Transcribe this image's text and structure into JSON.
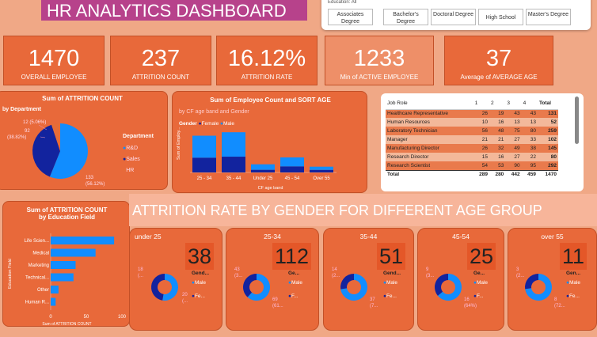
{
  "header": {
    "title": "HR ANALYTICS DASHBOARD"
  },
  "slicer": {
    "label": "Education: All",
    "options": [
      "Associates Degree",
      "Bachelor's Degree",
      "Doctoral Degree",
      "High School",
      "Master's Degree"
    ]
  },
  "kpis": [
    {
      "value": "1470",
      "label": "OVERALL EMPLOYEE"
    },
    {
      "value": "237",
      "label": "ATTRITION COUNT"
    },
    {
      "value": "16.12%",
      "label": "ATTRITION RATE"
    },
    {
      "value": "1233",
      "label": "Min of ACTIVE EMPLOYEE"
    },
    {
      "value": "37",
      "label": "Average of AVERAGE AGE"
    }
  ],
  "dept_panel": {
    "title": "Sum of ATTRITION COUNT",
    "subtitle": "by Department",
    "legend_title": "Department",
    "legend": [
      "R&D",
      "Sales",
      "HR"
    ],
    "labels": {
      "hr": "12 (5.06%)",
      "sales_a": "92",
      "sales_b": "(38.82%)",
      "rd_a": "133",
      "rd_b": "(56.12%)"
    },
    "chart_data": {
      "type": "pie",
      "categories": [
        "R&D",
        "Sales",
        "HR"
      ],
      "values": [
        133,
        92,
        12
      ],
      "colors": [
        "#118dff",
        "#12239e",
        "#e66c37"
      ]
    }
  },
  "gender_panel": {
    "title": "Sum of Employee Count and SORT AGE",
    "subtitle": "by CF age band and Gender",
    "legend_title": "Gender",
    "legend": [
      "Female",
      "Male"
    ],
    "ylabel": "Sum of Employ...",
    "xlabel": "CF age band",
    "chart_data": {
      "type": "bar",
      "categories": [
        "25 - 34",
        "35 - 44",
        "Under 25",
        "45 - 54",
        "Over 55"
      ],
      "series": [
        {
          "name": "Female",
          "values": [
            222,
            238,
            40,
            91,
            39
          ]
        },
        {
          "name": "Male",
          "values": [
            332,
            368,
            83,
            136,
            48
          ]
        }
      ],
      "ylim": [
        0,
        620
      ]
    }
  },
  "jobrole": {
    "headers": [
      "Job Role",
      "1",
      "2",
      "3",
      "4",
      "Total"
    ],
    "rows": [
      [
        "Healthcare Representative",
        "26",
        "19",
        "43",
        "43",
        "131"
      ],
      [
        "Human Resources",
        "10",
        "16",
        "13",
        "13",
        "52"
      ],
      [
        "Laboratory Technician",
        "56",
        "48",
        "75",
        "80",
        "259"
      ],
      [
        "Manager",
        "21",
        "21",
        "27",
        "33",
        "102"
      ],
      [
        "Manufacturing Director",
        "26",
        "32",
        "49",
        "38",
        "145"
      ],
      [
        "Research Director",
        "15",
        "16",
        "27",
        "22",
        "80"
      ],
      [
        "Research Scientist",
        "54",
        "53",
        "90",
        "95",
        "292"
      ]
    ],
    "total": [
      "Total",
      "289",
      "280",
      "442",
      "459",
      "1470"
    ]
  },
  "edu_panel": {
    "title": "Sum of ATTRITION COUNT",
    "subtitle": "by Education Field",
    "ylabel": "Education Field",
    "xlabel": "Sum of ATTRITION COUNT",
    "chart_data": {
      "type": "bar",
      "categories": [
        "Life Scien...",
        "Medical",
        "Marketing",
        "Technical...",
        "Other",
        "Human R..."
      ],
      "values": [
        89,
        63,
        35,
        32,
        11,
        7
      ],
      "xlim": [
        0,
        100
      ],
      "ticks": [
        "0",
        "50",
        "100"
      ]
    }
  },
  "banner": {
    "text": "ATTRITION RATE BY GENDER FOR DIFFERENT AGE GROUP"
  },
  "age_cards": [
    {
      "title": "under 25",
      "count": "38",
      "labels": [
        "18",
        "(...",
        "20",
        "(..."
      ],
      "legend_title": "Gend...",
      "legend": [
        "Male",
        "Fe..."
      ],
      "male": 20,
      "female": 18
    },
    {
      "title": "25-34",
      "count": "112",
      "labels": [
        "43",
        "(3...",
        "69",
        "(61..."
      ],
      "legend_title": "Ge...",
      "legend": [
        "Male",
        "F..."
      ],
      "male": 69,
      "female": 43
    },
    {
      "title": "35-44",
      "count": "51",
      "labels": [
        "14",
        "(2...",
        "37",
        "(7..."
      ],
      "legend_title": "Gend...",
      "legend": [
        "Male",
        "Fe..."
      ],
      "male": 37,
      "female": 14
    },
    {
      "title": "45-54",
      "count": "25",
      "labels": [
        "9",
        "(3...",
        "16",
        "(64%)"
      ],
      "legend_title": "Ge...",
      "legend": [
        "Male",
        "F..."
      ],
      "male": 16,
      "female": 9
    },
    {
      "title": "over 55",
      "count": "11",
      "labels": [
        "3",
        "(2...",
        "8",
        "(72..."
      ],
      "legend_title": "Gen...",
      "legend": [
        "Male",
        "Fe..."
      ],
      "male": 8,
      "female": 3
    }
  ],
  "colors": {
    "male": "#118dff",
    "female": "#12239e",
    "hr": "#e66c37",
    "panel": "#e8693a",
    "background": "#f0a886"
  }
}
